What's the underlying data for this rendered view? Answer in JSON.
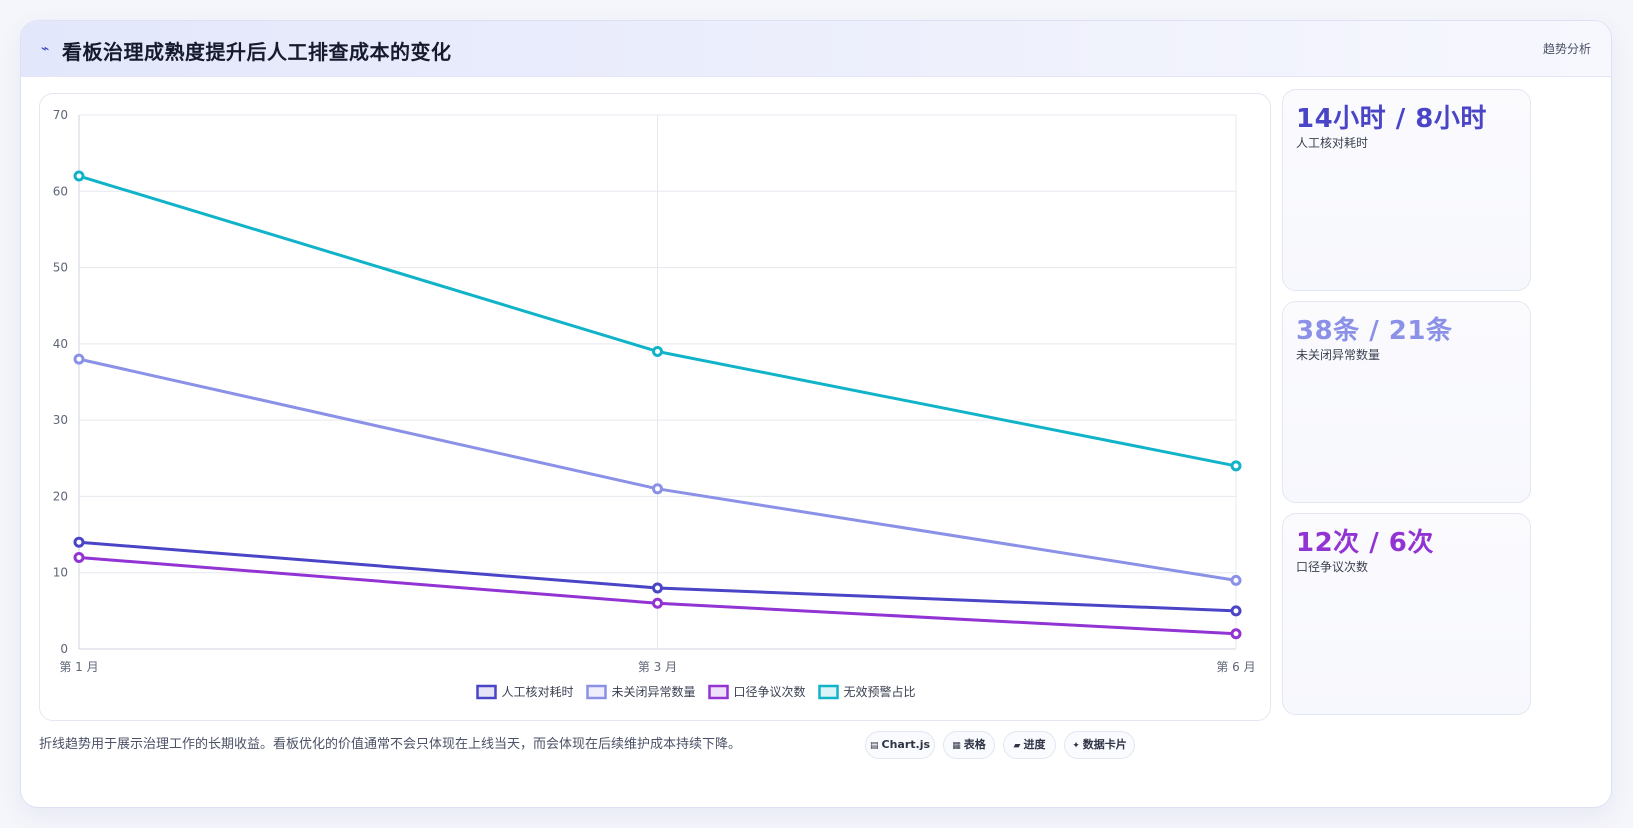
{
  "header": {
    "icon": "line-chart-icon",
    "title": "看板治理成熟度提升后人工排查成本的变化",
    "tag": "趋势分析"
  },
  "chart_data": {
    "type": "line",
    "categories": [
      "第 1 月",
      "第 3 月",
      "第 6 月"
    ],
    "ylim": [
      0,
      70
    ],
    "yticks": [
      0,
      10,
      20,
      30,
      40,
      50,
      60,
      70
    ],
    "grid": true,
    "legend_position": "bottom",
    "series": [
      {
        "name": "人工核对耗时",
        "values": [
          14,
          8,
          5
        ],
        "color": "#4a44c7"
      },
      {
        "name": "未关闭异常数量",
        "values": [
          38,
          21,
          9
        ],
        "color": "#8a91e6"
      },
      {
        "name": "口径争议次数",
        "values": [
          12,
          6,
          2
        ],
        "color": "#9233d4"
      },
      {
        "name": "无效预警占比",
        "values": [
          62,
          39,
          24
        ],
        "color": "#11b3c9"
      }
    ]
  },
  "kpis": [
    {
      "value": "14小时 / 8小时",
      "label": "人工核对耗时",
      "color": "#4a44c7"
    },
    {
      "value": "38条 / 21条",
      "label": "未关闭异常数量",
      "color": "#8a91e6"
    },
    {
      "value": "12次 / 6次",
      "label": "口径争议次数",
      "color": "#9233d4"
    }
  ],
  "note": "折线趋势用于展示治理工作的长期收益。看板优化的价值通常不会只体现在上线当天，而会体现在后续维护成本持续下降。",
  "pills": [
    {
      "icon": "chart-icon",
      "glyph": "▤",
      "label": "Chart.js"
    },
    {
      "icon": "table-icon",
      "glyph": "▦",
      "label": "表格"
    },
    {
      "icon": "progress-icon",
      "glyph": "▰",
      "label": "进度"
    },
    {
      "icon": "sparkle-icon",
      "glyph": "✦",
      "label": "数据卡片"
    }
  ]
}
